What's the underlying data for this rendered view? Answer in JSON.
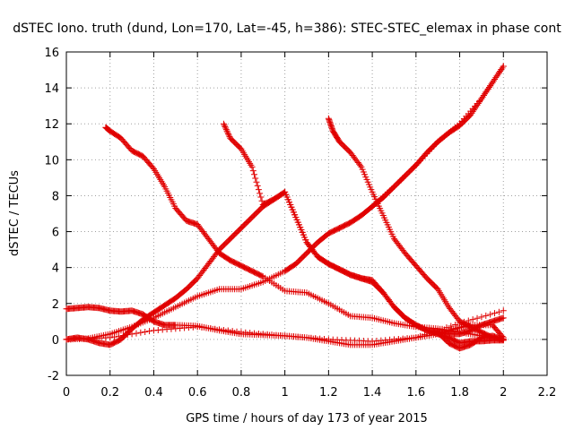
{
  "chart_data": {
    "type": "scatter",
    "title": "dSTEC Iono. truth (dund, Lon=170, Lat=-45, h=386): STEC-STEC_elemax in phase cont",
    "xlabel": "GPS time / hours of day 173 of year 2015",
    "ylabel": "dSTEC  / TECUs",
    "xlim": [
      0,
      2.2
    ],
    "ylim": [
      -2,
      16
    ],
    "xticks": [
      "0",
      "0.2",
      "0.4",
      "0.6",
      "0.8",
      "1",
      "1.2",
      "1.4",
      "1.6",
      "1.8",
      "2",
      "2.2"
    ],
    "yticks": [
      "-2",
      "0",
      "2",
      "4",
      "6",
      "8",
      "10",
      "12",
      "14",
      "16"
    ],
    "grid": true,
    "marker": "+",
    "color": "#e00000",
    "series": [
      {
        "x": [
          0.0,
          0.05,
          0.1,
          0.15,
          0.2,
          0.25,
          0.3,
          0.35,
          0.4,
          0.45,
          0.5,
          0.6,
          0.7,
          0.8,
          0.9,
          1.0,
          1.1,
          1.2,
          1.3,
          1.4,
          1.5,
          1.6,
          1.7,
          1.78,
          1.85,
          1.95,
          2.0
        ],
        "y": [
          1.7,
          1.75,
          1.8,
          1.75,
          1.6,
          1.55,
          1.6,
          1.4,
          1.0,
          0.8,
          0.8,
          0.75,
          0.5,
          0.3,
          0.25,
          0.2,
          0.1,
          -0.1,
          -0.3,
          -0.3,
          -0.1,
          0.1,
          0.3,
          0.6,
          0.8,
          0.8,
          0.1
        ]
      },
      {
        "x": [
          0.0,
          0.05,
          0.1,
          0.15,
          0.2,
          0.25,
          0.3,
          0.35,
          0.4,
          0.45,
          0.5,
          0.55,
          0.6,
          0.65,
          0.7,
          0.75,
          0.8,
          0.85,
          0.9,
          0.95,
          1.0,
          1.05,
          1.1,
          1.15,
          1.2,
          1.25,
          1.3,
          1.35,
          1.4,
          1.45,
          1.5,
          1.55,
          1.6,
          1.65,
          1.7,
          1.75,
          1.8,
          1.85,
          1.9,
          1.95,
          2.0
        ],
        "y": [
          0.0,
          0.1,
          0.0,
          -0.2,
          -0.3,
          0.0,
          0.6,
          1.1,
          1.5,
          1.9,
          2.3,
          2.8,
          3.4,
          4.2,
          5.0,
          5.6,
          6.2,
          6.8,
          7.4,
          7.8,
          8.2,
          6.8,
          5.4,
          4.6,
          4.2,
          3.9,
          3.6,
          3.4,
          3.2,
          2.6,
          1.8,
          1.2,
          0.8,
          0.5,
          0.3,
          0.1,
          -0.2,
          -0.1,
          -0.1,
          -0.05,
          -0.05
        ]
      },
      {
        "x": [
          0.0,
          0.1,
          0.2,
          0.3,
          0.4,
          0.5,
          0.6,
          0.7,
          0.8,
          0.9,
          1.0,
          1.05,
          1.1,
          1.15,
          1.2,
          1.25,
          1.3,
          1.35,
          1.4,
          1.45,
          1.5,
          1.55,
          1.6,
          1.65,
          1.7,
          1.75,
          1.8,
          1.85,
          1.9,
          1.95,
          2.0
        ],
        "y": [
          0.0,
          0.05,
          0.3,
          0.7,
          1.2,
          1.8,
          2.4,
          2.8,
          2.8,
          3.2,
          3.8,
          4.2,
          4.8,
          5.4,
          5.9,
          6.2,
          6.5,
          6.9,
          7.4,
          7.9,
          8.5,
          9.1,
          9.7,
          10.4,
          11.0,
          11.5,
          11.9,
          12.5,
          13.4,
          14.3,
          15.2
        ]
      },
      {
        "x": [
          0.18,
          0.2,
          0.25,
          0.3,
          0.35,
          0.4,
          0.45,
          0.5,
          0.55,
          0.6,
          0.65,
          0.7,
          0.75,
          0.8,
          0.85,
          0.9,
          1.0,
          1.1,
          1.2,
          1.3,
          1.4,
          1.5,
          1.6,
          1.7,
          1.8,
          1.9,
          2.0
        ],
        "y": [
          11.8,
          11.6,
          11.2,
          10.5,
          10.2,
          9.5,
          8.5,
          7.3,
          6.6,
          6.4,
          5.6,
          4.8,
          4.4,
          4.1,
          3.8,
          3.5,
          2.7,
          2.6,
          2.0,
          1.3,
          1.2,
          0.9,
          0.7,
          0.6,
          0.4,
          0.2,
          0.0
        ]
      },
      {
        "x": [
          0.72,
          0.75,
          0.8,
          0.85,
          0.9,
          0.95,
          1.0,
          1.05,
          1.1,
          1.15,
          1.2,
          1.25,
          1.3,
          1.35,
          1.4,
          1.45,
          1.5,
          1.55,
          1.6,
          1.65,
          1.7,
          1.75,
          1.8,
          1.85,
          1.9,
          1.95,
          2.0
        ],
        "y": [
          12.0,
          11.2,
          10.6,
          9.6,
          7.5,
          7.8,
          8.2,
          6.8,
          5.4,
          4.6,
          4.2,
          3.9,
          3.6,
          3.4,
          3.3,
          2.6,
          1.8,
          1.2,
          0.8,
          0.5,
          0.4,
          0.3,
          0.3,
          0.5,
          0.8,
          1.0,
          1.2
        ]
      },
      {
        "x": [
          1.2,
          1.22,
          1.25,
          1.3,
          1.35,
          1.4,
          1.45,
          1.5,
          1.55,
          1.6,
          1.65,
          1.7,
          1.75,
          1.8,
          1.85,
          1.9,
          1.95,
          2.0
        ],
        "y": [
          12.3,
          11.6,
          11.0,
          10.4,
          9.6,
          8.2,
          6.9,
          5.6,
          4.8,
          4.1,
          3.4,
          2.8,
          1.8,
          1.0,
          0.7,
          0.4,
          0.1,
          0.0
        ]
      },
      {
        "x": [
          1.7,
          1.75,
          1.8,
          1.85,
          1.9,
          1.95,
          2.0
        ],
        "y": [
          0.4,
          -0.2,
          -0.5,
          -0.3,
          0.1,
          0.2,
          0.0
        ]
      },
      {
        "x": [
          1.4,
          1.5,
          1.6,
          1.7,
          1.8,
          1.9,
          2.0
        ],
        "y": [
          7.4,
          8.5,
          9.7,
          11.0,
          12.0,
          13.4,
          15.2
        ]
      },
      {
        "x": [
          0.0,
          0.2,
          0.4,
          0.6,
          0.8,
          1.0,
          1.2,
          1.4,
          1.6,
          1.8,
          2.0
        ],
        "y": [
          0.0,
          0.1,
          0.5,
          0.7,
          0.4,
          0.2,
          0.0,
          -0.1,
          0.1,
          0.9,
          1.6
        ]
      }
    ]
  }
}
